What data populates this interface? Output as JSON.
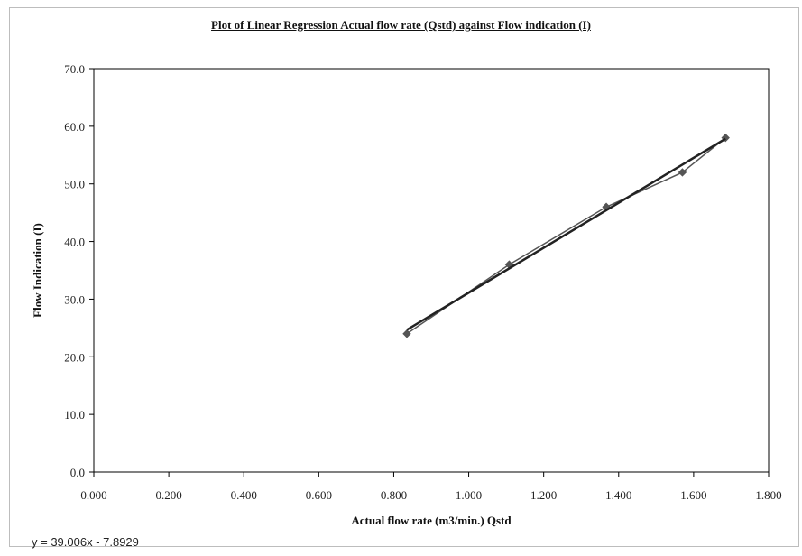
{
  "chart_data": {
    "type": "scatter",
    "title": "Plot of Linear Regression Actual flow rate (Qstd) against Flow indication (I)",
    "xlabel": "Actual flow rate (m3/min.) Qstd",
    "ylabel": "Flow Indication (I)",
    "xlim": [
      0.0,
      1.8
    ],
    "ylim": [
      0.0,
      70.0
    ],
    "x_ticks": [
      "0.000",
      "0.200",
      "0.400",
      "0.600",
      "0.800",
      "1.000",
      "1.200",
      "1.400",
      "1.600",
      "1.800"
    ],
    "y_ticks": [
      "0.0",
      "10.0",
      "20.0",
      "30.0",
      "40.0",
      "50.0",
      "60.0",
      "70.0"
    ],
    "grid": false,
    "series": [
      {
        "values": [
          {
            "x": 0.835,
            "y": 24.0
          },
          {
            "x": 1.108,
            "y": 36.0
          },
          {
            "x": 1.367,
            "y": 46.0
          },
          {
            "x": 1.57,
            "y": 52.0
          },
          {
            "x": 1.685,
            "y": 58.0
          }
        ],
        "color": "#555555",
        "marker": "diamond"
      }
    ],
    "trendline": {
      "slope": 39.006,
      "intercept": -7.8929,
      "color": "#222222"
    },
    "equation": "y = 39.006x - 7.8929"
  }
}
